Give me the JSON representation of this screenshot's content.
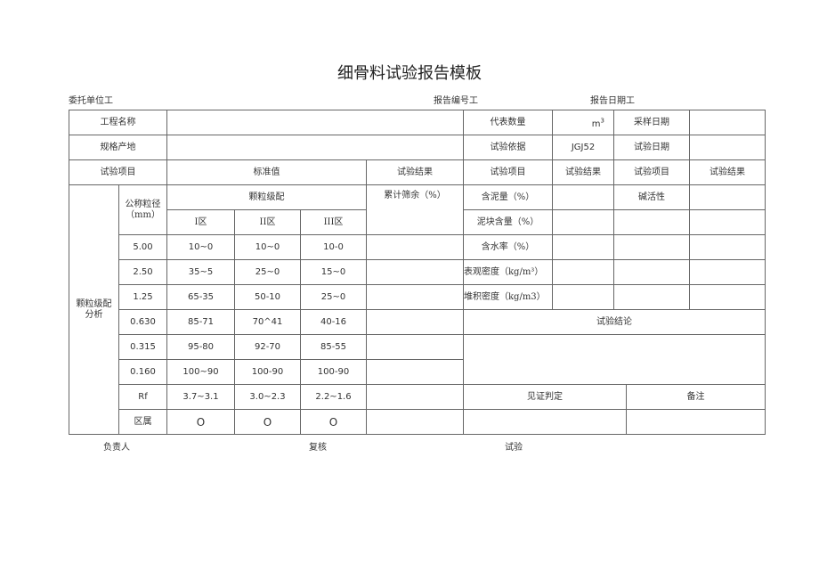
{
  "title": "细骨料试验报告模板",
  "header": {
    "client": "委托单位工",
    "report_no": "报告编号工",
    "report_date": "报告日期工"
  },
  "info": {
    "project_name_label": "工程名称",
    "quantity_label": "代表数量",
    "quantity_unit": "m³",
    "sampling_date_label": "采样日期",
    "spec_origin_label": "规格产地",
    "basis_label": "试验依据",
    "basis_value": "JGJ52",
    "test_date_label": "试验日期"
  },
  "columns": {
    "item": "试验项目",
    "standard": "标准值",
    "result": "试验结果"
  },
  "grading": {
    "section_label": "颗粒级配分析",
    "size_label": "公称粒径（mm）",
    "grading_label": "颗粒级配",
    "cumulative_label": "累计筛余（%）",
    "zones": [
      "I区",
      "II区",
      "III区"
    ],
    "rows": [
      {
        "size": "5.00",
        "z1": "10~0",
        "z2": "10~0",
        "z3": "10-0"
      },
      {
        "size": "2.50",
        "z1": "35~5",
        "z2": "25~0",
        "z3": "15~0"
      },
      {
        "size": "1.25",
        "z1": "65-35",
        "z2": "50-10",
        "z3": "25~0"
      },
      {
        "size": "0.630",
        "z1": "85-71",
        "z2": "70^41",
        "z3": "40-16"
      },
      {
        "size": "0.315",
        "z1": "95-80",
        "z2": "92-70",
        "z3": "85-55"
      },
      {
        "size": "0.160",
        "z1": "100~90",
        "z2": "100-90",
        "z3": "100-90"
      },
      {
        "size": "Rf",
        "z1": "3.7~3.1",
        "z2": "3.0~2.3",
        "z3": "2.2~1.6"
      },
      {
        "size": "区属",
        "z1": "O",
        "z2": "O",
        "z3": "O"
      }
    ]
  },
  "tests": {
    "mud": "含泥量（%）",
    "clay_lump": "泥块含量（%）",
    "moisture": "含水率（%）",
    "apparent_density": "表观密度（kg/m³）",
    "bulk_density": "堆积密度（kg/m3）",
    "alkali": "碱活性",
    "conclusion": "试验结论",
    "witness": "见证判定",
    "remarks": "备注"
  },
  "footer": {
    "responsible": "负责人",
    "reviewer": "复核",
    "tester": "试验"
  }
}
